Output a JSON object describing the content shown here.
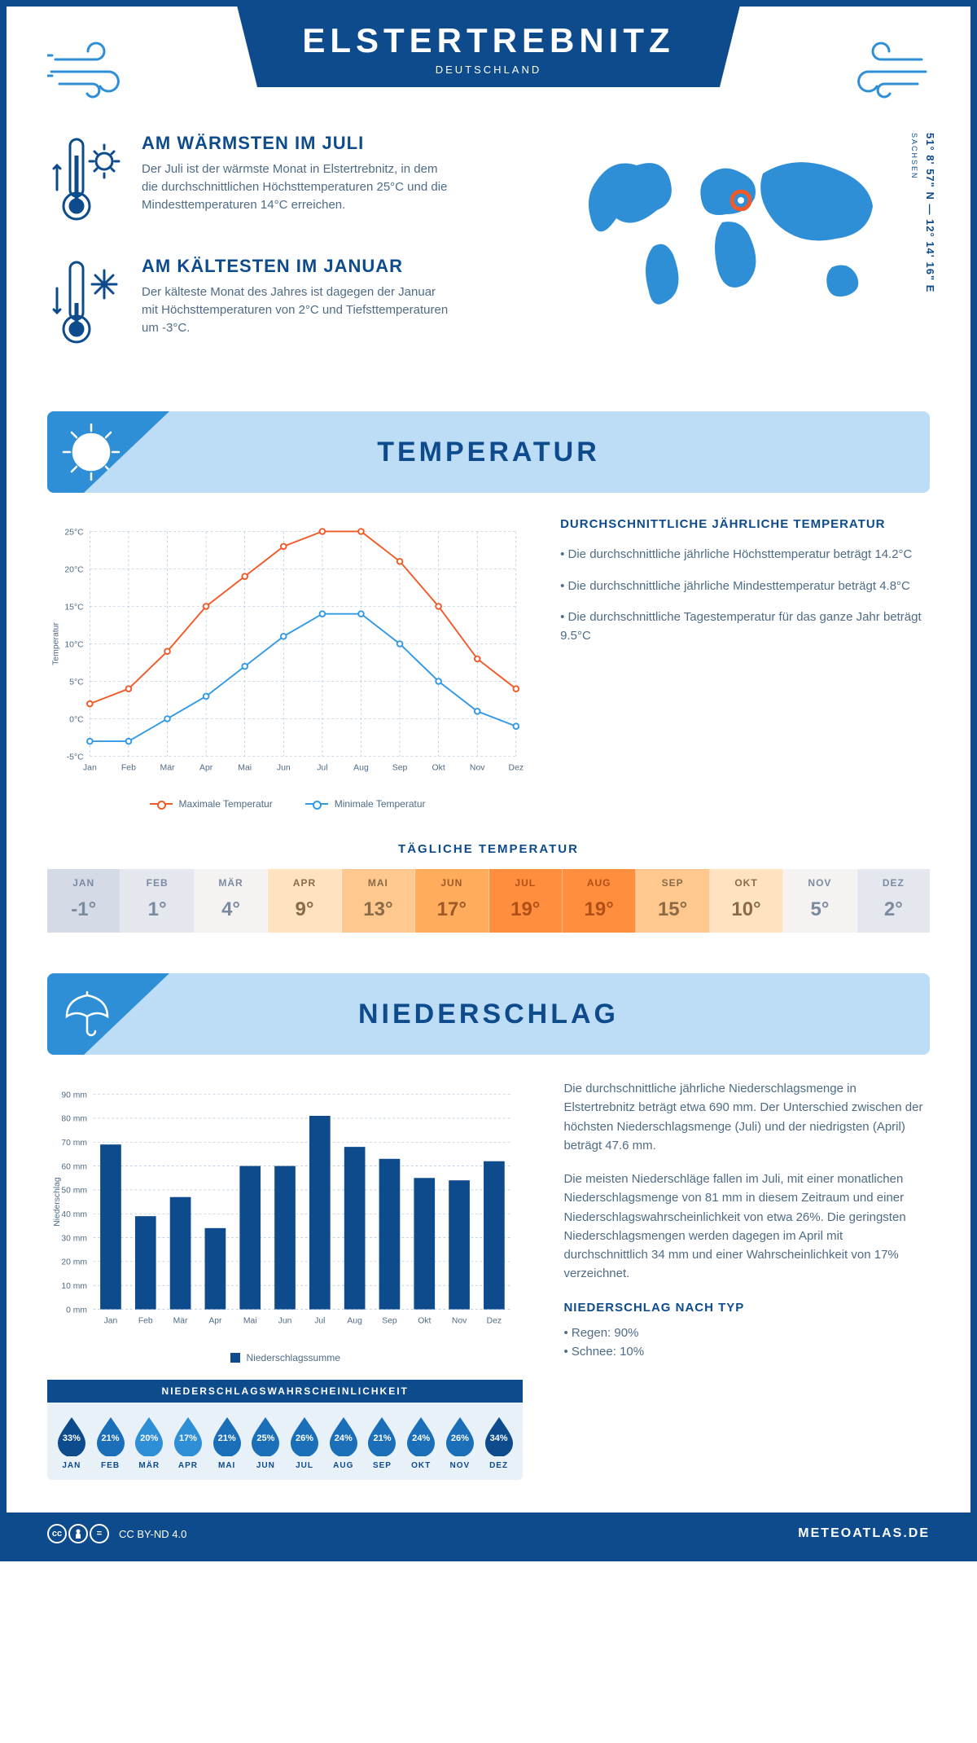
{
  "header": {
    "title": "ELSTERTREBNITZ",
    "subtitle": "DEUTSCHLAND",
    "coords": "51° 8' 57\" N — 12° 14' 16\" E",
    "region": "SACHSEN"
  },
  "intro": {
    "warm": {
      "heading": "AM WÄRMSTEN IM JULI",
      "text": "Der Juli ist der wärmste Monat in Elstertrebnitz, in dem die durchschnittlichen Höchsttemperaturen 25°C und die Mindesttemperaturen 14°C erreichen."
    },
    "cold": {
      "heading": "AM KÄLTESTEN IM JANUAR",
      "text": "Der kälteste Monat des Jahres ist dagegen der Januar mit Höchsttemperaturen von 2°C und Tiefsttemperaturen um -3°C."
    }
  },
  "sections": {
    "temperature": "TEMPERATUR",
    "precip": "NIEDERSCHLAG"
  },
  "tempChart": {
    "months": [
      "Jan",
      "Feb",
      "Mär",
      "Apr",
      "Mai",
      "Jun",
      "Jul",
      "Aug",
      "Sep",
      "Okt",
      "Nov",
      "Dez"
    ],
    "max": [
      2,
      4,
      9,
      15,
      19,
      23,
      25,
      25,
      21,
      15,
      8,
      4
    ],
    "min": [
      -3,
      -3,
      0,
      3,
      7,
      11,
      14,
      14,
      10,
      5,
      1,
      -1
    ],
    "colors": {
      "max": "#f05a28",
      "min": "#3399e6",
      "grid": "#9bb7d1",
      "bg": "#ffffff",
      "text": "#4f6b86"
    },
    "ymin": -5,
    "ymax": 25,
    "ystep": 5,
    "ylabel": "Temperatur",
    "legend": {
      "max": "Maximale Temperatur",
      "min": "Minimale Temperatur"
    },
    "fontsize": 11
  },
  "tempSummary": {
    "heading": "DURCHSCHNITTLICHE JÄHRLICHE TEMPERATUR",
    "bullets": [
      "Die durchschnittliche jährliche Höchsttemperatur beträgt 14.2°C",
      "Die durchschnittliche jährliche Mindesttemperatur beträgt 4.8°C",
      "Die durchschnittliche Tagestemperatur für das ganze Jahr beträgt 9.5°C"
    ]
  },
  "dailyStrip": {
    "heading": "TÄGLICHE TEMPERATUR",
    "months": [
      "JAN",
      "FEB",
      "MÄR",
      "APR",
      "MAI",
      "JUN",
      "JUL",
      "AUG",
      "SEP",
      "OKT",
      "NOV",
      "DEZ"
    ],
    "values": [
      "-1°",
      "1°",
      "4°",
      "9°",
      "13°",
      "17°",
      "19°",
      "19°",
      "15°",
      "10°",
      "5°",
      "2°"
    ],
    "bgColors": [
      "#d5dbe6",
      "#e4e7ee",
      "#f4f3f2",
      "#ffe3c0",
      "#ffc88e",
      "#ffad5d",
      "#ff8f3f",
      "#ff8f3f",
      "#ffc88e",
      "#ffe3c0",
      "#f4f3f2",
      "#e4e7ee"
    ],
    "textColors": [
      "#7c8aa0",
      "#7c8aa0",
      "#7c8aa0",
      "#8a6b48",
      "#8a6b48",
      "#9b5a28",
      "#b04f17",
      "#b04f17",
      "#8a6b48",
      "#8a6b48",
      "#7c8aa0",
      "#7c8aa0"
    ]
  },
  "precipChart": {
    "months": [
      "Jan",
      "Feb",
      "Mär",
      "Apr",
      "Mai",
      "Jun",
      "Jul",
      "Aug",
      "Sep",
      "Okt",
      "Nov",
      "Dez"
    ],
    "values": [
      69,
      39,
      47,
      34,
      60,
      60,
      81,
      68,
      63,
      55,
      54,
      62
    ],
    "ymax": 90,
    "ystep": 10,
    "ylabel": "Niederschlag",
    "legend": "Niederschlagssumme",
    "color": "#0e4b8c",
    "grid": "#9bb7d1",
    "fontsize": 11,
    "barWidth": 0.6
  },
  "precipText": {
    "p1": "Die durchschnittliche jährliche Niederschlagsmenge in Elstertrebnitz beträgt etwa 690 mm. Der Unterschied zwischen der höchsten Niederschlagsmenge (Juli) und der niedrigsten (April) beträgt 47.6 mm.",
    "p2": "Die meisten Niederschläge fallen im Juli, mit einer monatlichen Niederschlagsmenge von 81 mm in diesem Zeitraum und einer Niederschlagswahrscheinlichkeit von etwa 26%. Die geringsten Niederschlagsmengen werden dagegen im April mit durchschnittlich 34 mm und einer Wahrscheinlichkeit von 17% verzeichnet.",
    "typeHeading": "NIEDERSCHLAG NACH TYP",
    "types": [
      "Regen: 90%",
      "Schnee: 10%"
    ]
  },
  "probStrip": {
    "heading": "NIEDERSCHLAGSWAHRSCHEINLICHKEIT",
    "months": [
      "JAN",
      "FEB",
      "MÄR",
      "APR",
      "MAI",
      "JUN",
      "JUL",
      "AUG",
      "SEP",
      "OKT",
      "NOV",
      "DEZ"
    ],
    "values": [
      "33%",
      "21%",
      "20%",
      "17%",
      "21%",
      "25%",
      "26%",
      "24%",
      "21%",
      "24%",
      "26%",
      "34%"
    ],
    "fillDark": "#0e4b8c",
    "fillLight": "#2f8fd6"
  },
  "footer": {
    "license": "CC BY-ND 4.0",
    "site": "METEOATLAS.DE"
  }
}
